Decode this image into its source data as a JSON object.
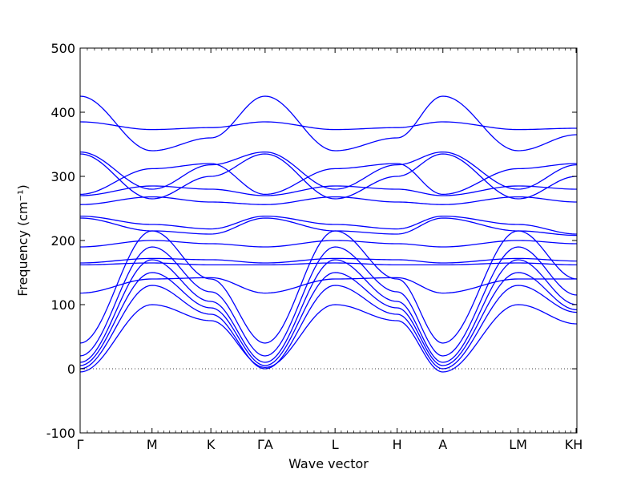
{
  "chart_data": {
    "type": "line",
    "title": "",
    "xlabel": "Wave vector",
    "ylabel": "Frequency (cm⁻¹)",
    "ylim": [
      -100,
      500
    ],
    "yticks": [
      -100,
      0,
      100,
      200,
      300,
      400,
      500
    ],
    "xlim": [
      0,
      6.9
    ],
    "xticks": [
      {
        "pos": 0.0,
        "label": "Γ"
      },
      {
        "pos": 1.1,
        "label": "M"
      },
      {
        "pos": 2.0,
        "label": "K"
      },
      {
        "pos": 2.83,
        "label": "ΓA"
      },
      {
        "pos": 3.9,
        "label": "L"
      },
      {
        "pos": 4.85,
        "label": "H"
      },
      {
        "pos": 5.55,
        "label": "A"
      },
      {
        "pos": 6.7,
        "label": "LM"
      },
      {
        "pos": 7.6,
        "label": "KH"
      }
    ],
    "zero_line": 0,
    "grid": false,
    "line_color": "#0000ff",
    "series": [
      {
        "values": [
          425,
          340,
          360,
          425,
          340,
          360,
          425,
          340,
          365
        ]
      },
      {
        "values": [
          385,
          373,
          376,
          385,
          373,
          376,
          385,
          373,
          375
        ]
      },
      {
        "values": [
          338,
          280,
          318,
          338,
          280,
          318,
          338,
          280,
          318
        ]
      },
      {
        "values": [
          335,
          265,
          300,
          335,
          265,
          300,
          335,
          265,
          300
        ]
      },
      {
        "values": [
          272,
          312,
          320,
          272,
          312,
          320,
          272,
          312,
          320
        ]
      },
      {
        "values": [
          270,
          285,
          280,
          270,
          285,
          280,
          270,
          285,
          280
        ]
      },
      {
        "values": [
          256,
          268,
          260,
          256,
          268,
          260,
          256,
          268,
          260
        ]
      },
      {
        "values": [
          238,
          225,
          218,
          238,
          225,
          218,
          238,
          225,
          210
        ]
      },
      {
        "values": [
          235,
          215,
          210,
          235,
          215,
          210,
          235,
          215,
          208
        ]
      },
      {
        "values": [
          190,
          200,
          195,
          190,
          200,
          195,
          190,
          200,
          195
        ]
      },
      {
        "values": [
          165,
          172,
          170,
          165,
          172,
          170,
          165,
          172,
          168
        ]
      },
      {
        "values": [
          162,
          165,
          162,
          162,
          165,
          162,
          162,
          165,
          162
        ]
      },
      {
        "values": [
          118,
          140,
          142,
          118,
          140,
          142,
          118,
          140,
          140
        ]
      },
      {
        "values": [
          40,
          215,
          140,
          40,
          215,
          140,
          40,
          215,
          140
        ]
      },
      {
        "values": [
          20,
          190,
          120,
          20,
          190,
          120,
          20,
          190,
          115
        ]
      },
      {
        "values": [
          10,
          170,
          105,
          10,
          170,
          105,
          10,
          170,
          100
        ]
      },
      {
        "values": [
          5,
          150,
          95,
          5,
          150,
          95,
          5,
          150,
          92
        ]
      },
      {
        "values": [
          0,
          130,
          85,
          0,
          130,
          85,
          0,
          130,
          88
        ]
      },
      {
        "values": [
          -5,
          100,
          75,
          2,
          100,
          75,
          -5,
          100,
          70
        ]
      }
    ]
  }
}
